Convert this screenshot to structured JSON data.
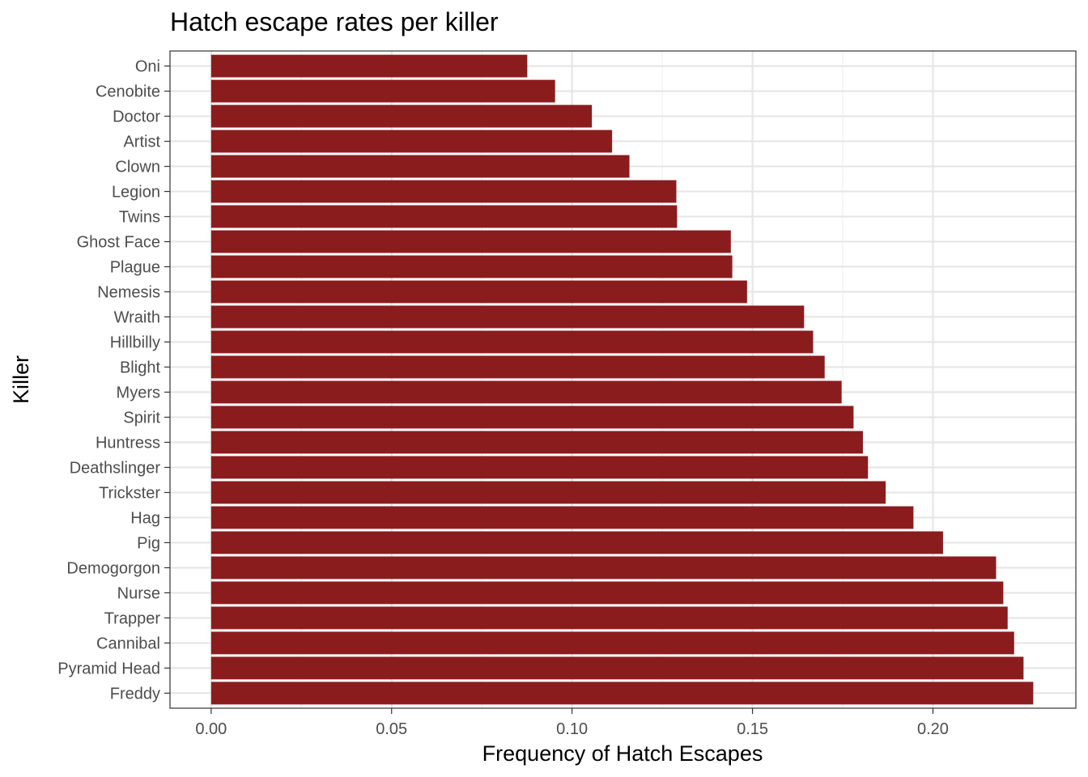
{
  "chart_data": {
    "type": "bar",
    "orientation": "horizontal",
    "title": "Hatch escape rates per killer",
    "xlabel": "Frequency of Hatch Escapes",
    "ylabel": "Killer",
    "xlim": [
      -0.0114,
      0.2396
    ],
    "xticks": [
      0.0,
      0.05,
      0.1,
      0.15,
      0.2
    ],
    "xtick_labels": [
      "0.00",
      "0.05",
      "0.10",
      "0.15",
      "0.20"
    ],
    "grid": true,
    "categories": [
      "Oni",
      "Cenobite",
      "Doctor",
      "Artist",
      "Clown",
      "Legion",
      "Twins",
      "Ghost Face",
      "Plague",
      "Nemesis",
      "Wraith",
      "Hillbilly",
      "Blight",
      "Myers",
      "Spirit",
      "Huntress",
      "Deathslinger",
      "Trickster",
      "Hag",
      "Pig",
      "Demogorgon",
      "Nurse",
      "Trapper",
      "Cannibal",
      "Pyramid Head",
      "Freddy"
    ],
    "values": [
      0.0876,
      0.0953,
      0.1055,
      0.1111,
      0.1159,
      0.1289,
      0.1291,
      0.144,
      0.1444,
      0.1485,
      0.1643,
      0.1668,
      0.17,
      0.1747,
      0.178,
      0.1806,
      0.182,
      0.1869,
      0.1946,
      0.2028,
      0.2175,
      0.2195,
      0.2207,
      0.2225,
      0.2251,
      0.2278
    ],
    "bar_color": "#8B1C1E"
  }
}
